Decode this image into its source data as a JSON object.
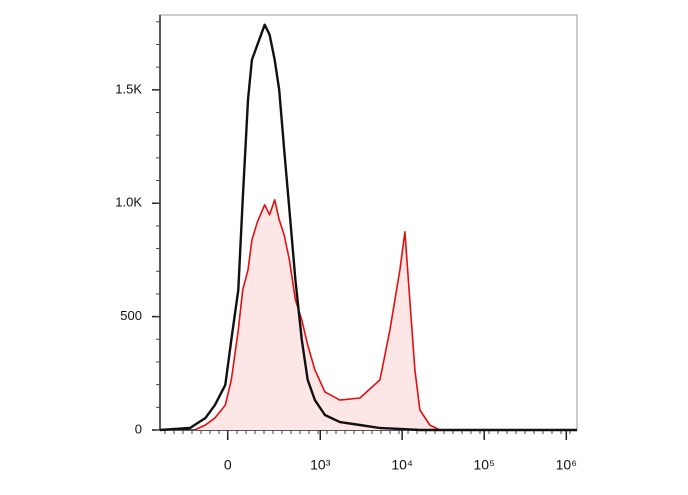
{
  "chart_data": {
    "type": "area",
    "xscale": "biexponential",
    "xlim": [
      -490,
      1350000
    ],
    "xticks": [
      0,
      {
        "value": 1000,
        "label": "10³"
      },
      {
        "value": 10000,
        "label": "10⁴"
      },
      {
        "value": 100000,
        "label": "10⁵"
      },
      {
        "value": 1000000,
        "label": "10⁶"
      }
    ],
    "ylim": [
      0,
      1830
    ],
    "yticks": [
      0,
      500,
      {
        "value": 1000,
        "label": "1.0K"
      },
      {
        "value": 1500,
        "label": "1.5K"
      }
    ],
    "series": [
      {
        "color": "#111111",
        "filled": false,
        "x": [
          -490,
          -190,
          -100,
          -55,
          -10,
          15,
          45,
          65,
          90,
          110,
          140,
          185,
          220,
          260,
          300,
          350,
          410,
          490,
          590,
          700,
          860,
          1140,
          1740,
          3060,
          5360,
          9390,
          16440,
          1350000
        ],
        "values": [
          0,
          9,
          53,
          110,
          199,
          397,
          618,
          1015,
          1456,
          1632,
          1699,
          1787,
          1743,
          1632,
          1500,
          1235,
          971,
          662,
          397,
          221,
          132,
          66,
          35,
          22,
          9,
          5,
          0,
          0
        ]
      },
      {
        "color": "#e01010",
        "fill": "#fde6e6",
        "filled": true,
        "x": [
          -160,
          -100,
          -55,
          -10,
          15,
          45,
          65,
          90,
          110,
          140,
          185,
          220,
          260,
          300,
          350,
          410,
          490,
          590,
          700,
          860,
          1140,
          1740,
          3060,
          5360,
          7100,
          8160,
          9390,
          10800,
          12400,
          14300,
          16440,
          21750,
          28800
        ],
        "values": [
          0,
          22,
          53,
          110,
          221,
          441,
          618,
          706,
          838,
          918,
          993,
          949,
          1015,
          927,
          860,
          750,
          574,
          485,
          375,
          265,
          168,
          132,
          141,
          221,
          441,
          574,
          706,
          874,
          574,
          265,
          88,
          22,
          0
        ]
      }
    ]
  }
}
